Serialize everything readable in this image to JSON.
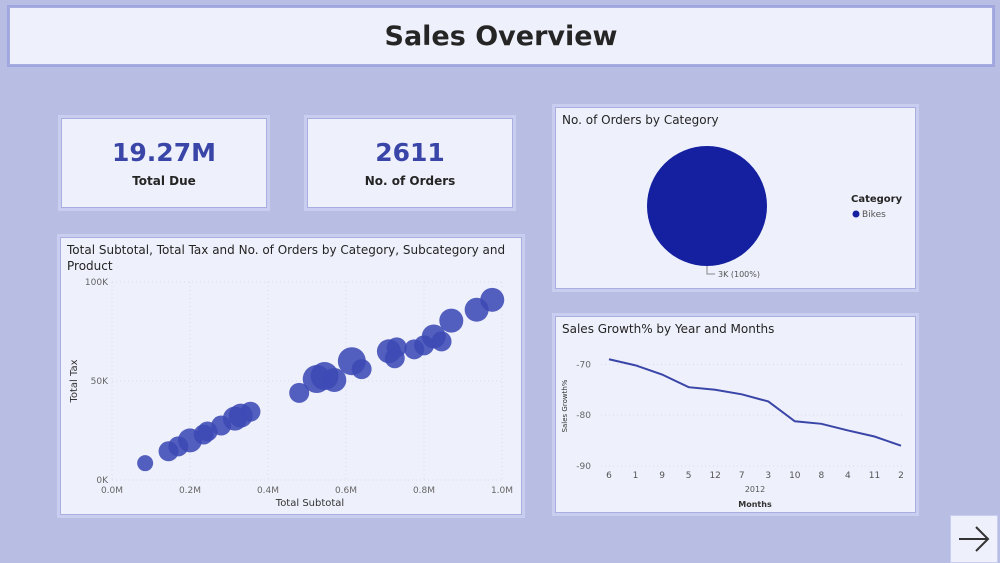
{
  "page": {
    "title": "Sales Overview"
  },
  "kpis": [
    {
      "value": "19.27M",
      "label": "Total Due"
    },
    {
      "value": "2611",
      "label": "No. of Orders"
    }
  ],
  "scatter_title": "Total Subtotal, Total Tax and No. of Orders by Category, Subcategory and Product",
  "pie_title": "No. of Orders by Category",
  "line_title": "Sales Growth% by Year and Months",
  "next_icon": "arrow-right-icon",
  "colors": {
    "accent": "#3a45a8",
    "pie": "#1420a0",
    "bubble": "#3d4ab5",
    "background": "#b8bde3"
  },
  "chart_data": [
    {
      "type": "scatter",
      "title": "Total Subtotal, Total Tax and No. of Orders by Category, Subcategory and Product",
      "xlabel": "Total Subtotal",
      "ylabel": "Total Tax",
      "xlim": [
        0,
        1000000
      ],
      "ylim": [
        0,
        100000
      ],
      "x_ticks": [
        "0.0M",
        "0.2M",
        "0.4M",
        "0.6M",
        "0.8M",
        "1.0M"
      ],
      "y_ticks": [
        "0K",
        "50K",
        "100K"
      ],
      "grid": true,
      "points": [
        {
          "x": 85000,
          "y": 8500,
          "size": 2
        },
        {
          "x": 145000,
          "y": 14500,
          "size": 3
        },
        {
          "x": 170000,
          "y": 17000,
          "size": 3
        },
        {
          "x": 200000,
          "y": 20000,
          "size": 4
        },
        {
          "x": 235000,
          "y": 23000,
          "size": 3
        },
        {
          "x": 245000,
          "y": 24500,
          "size": 3
        },
        {
          "x": 280000,
          "y": 27500,
          "size": 3
        },
        {
          "x": 315000,
          "y": 31000,
          "size": 4
        },
        {
          "x": 330000,
          "y": 32500,
          "size": 4
        },
        {
          "x": 355000,
          "y": 34500,
          "size": 3
        },
        {
          "x": 480000,
          "y": 44000,
          "size": 3
        },
        {
          "x": 525000,
          "y": 51000,
          "size": 5
        },
        {
          "x": 545000,
          "y": 52500,
          "size": 5
        },
        {
          "x": 570000,
          "y": 50500,
          "size": 4
        },
        {
          "x": 615000,
          "y": 60000,
          "size": 5
        },
        {
          "x": 640000,
          "y": 56000,
          "size": 3
        },
        {
          "x": 710000,
          "y": 65000,
          "size": 4
        },
        {
          "x": 725000,
          "y": 61500,
          "size": 3
        },
        {
          "x": 730000,
          "y": 67000,
          "size": 3
        },
        {
          "x": 775000,
          "y": 66000,
          "size": 3
        },
        {
          "x": 800000,
          "y": 68000,
          "size": 3
        },
        {
          "x": 825000,
          "y": 72500,
          "size": 4
        },
        {
          "x": 845000,
          "y": 70000,
          "size": 3
        },
        {
          "x": 870000,
          "y": 80500,
          "size": 4
        },
        {
          "x": 935000,
          "y": 86000,
          "size": 4
        },
        {
          "x": 975000,
          "y": 91000,
          "size": 4
        }
      ]
    },
    {
      "type": "pie",
      "title": "No. of Orders by Category",
      "legend_title": "Category",
      "legend_position": "right",
      "slices": [
        {
          "label": "Bikes",
          "value": 2611,
          "percent": 100,
          "data_label": "3K (100%)"
        }
      ]
    },
    {
      "type": "line",
      "title": "Sales Growth% by Year and Months",
      "xlabel": "Months",
      "x_group_label": "2012",
      "ylabel": "Sales Growth%",
      "categories": [
        "6",
        "1",
        "9",
        "5",
        "12",
        "7",
        "3",
        "10",
        "8",
        "4",
        "11",
        "2"
      ],
      "values": [
        -69,
        -70.2,
        -72,
        -74.5,
        -75,
        -75.9,
        -77.3,
        -81.2,
        -81.7,
        -83,
        -84.2,
        -86
      ],
      "ylim": [
        -90,
        -66
      ],
      "y_ticks": [
        "-70",
        "-80",
        "-90"
      ],
      "grid": true
    }
  ]
}
